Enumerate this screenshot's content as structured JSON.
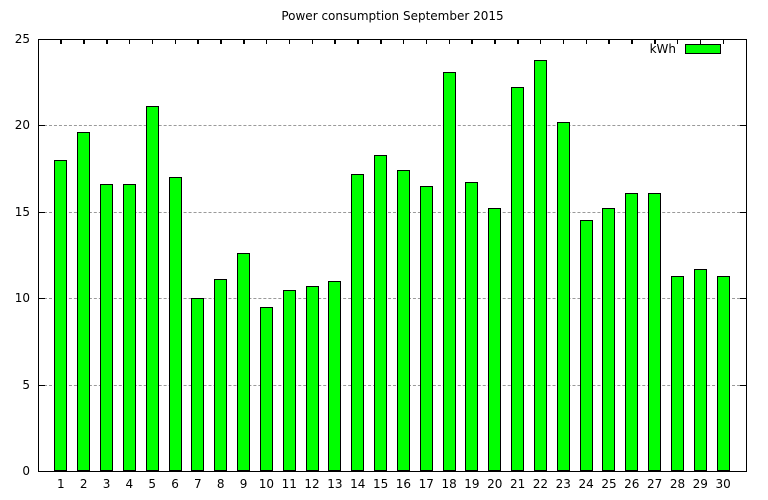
{
  "chart": {
    "title": "Power consumption September 2015",
    "legend": {
      "label": "kWh"
    }
  },
  "colors": {
    "background": "#ffffff",
    "bar_fill": "#00ff00",
    "bar_border": "#000000",
    "grid": "#9a9a9a",
    "axis": "#000000",
    "text": "#000000"
  },
  "chart_data": {
    "type": "bar",
    "title": "Power consumption September 2015",
    "series_name": "kWh",
    "xlabel": "",
    "ylabel": "",
    "categories": [
      "1",
      "2",
      "3",
      "4",
      "5",
      "6",
      "7",
      "8",
      "9",
      "10",
      "11",
      "12",
      "13",
      "14",
      "15",
      "16",
      "17",
      "18",
      "19",
      "20",
      "21",
      "22",
      "23",
      "24",
      "25",
      "26",
      "27",
      "28",
      "29",
      "30"
    ],
    "values": [
      18.0,
      19.6,
      16.6,
      16.6,
      21.1,
      17.0,
      10.0,
      11.1,
      12.6,
      9.5,
      10.5,
      10.7,
      11.0,
      17.2,
      18.3,
      17.4,
      16.5,
      23.1,
      16.7,
      15.2,
      22.2,
      23.8,
      20.2,
      14.5,
      15.2,
      16.1,
      16.1,
      11.3,
      11.7,
      11.3
    ],
    "ylim": [
      0,
      25
    ],
    "yticks": [
      0,
      5,
      10,
      15,
      20,
      25
    ],
    "xlim": [
      0,
      31
    ],
    "grid": "horizontal-dashed",
    "legend_position": "top-right"
  }
}
